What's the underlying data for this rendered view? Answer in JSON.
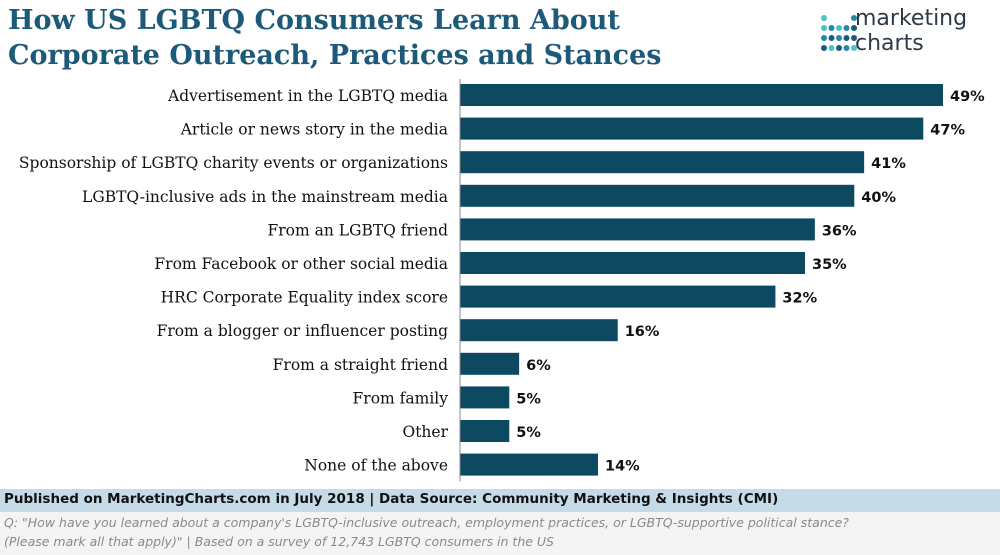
{
  "header": {
    "title_line1": "How US LGBTQ Consumers Learn About",
    "title_line2": "Corporate Outreach, Practices and Stances"
  },
  "brand": {
    "name_line1": "marketing",
    "name_line2": "charts",
    "dot_colors": [
      "#49c3c4",
      "#2a84b0",
      "#1d5a7a"
    ]
  },
  "colors": {
    "bar": "#0d4a62",
    "title": "#1d5a7a",
    "footer_band": "#c6dbe8"
  },
  "chart_data": {
    "type": "bar",
    "orientation": "horizontal",
    "categories": [
      "Advertisement in the LGBTQ media",
      "Article or news story in the media",
      "Sponsorship of LGBTQ charity events or organizations",
      "LGBTQ-inclusive ads in the mainstream media",
      "From an LGBTQ friend",
      "From Facebook or other social media",
      "HRC Corporate Equality index score",
      "From a blogger or influencer posting",
      "From a straight friend",
      "From family",
      "Other",
      "None of the above"
    ],
    "values": [
      49,
      47,
      41,
      40,
      36,
      35,
      32,
      16,
      6,
      5,
      5,
      14
    ],
    "data_labels": [
      "49%",
      "47%",
      "41%",
      "40%",
      "36%",
      "35%",
      "32%",
      "16%",
      "6%",
      "5%",
      "5%",
      "14%"
    ],
    "unit": "%",
    "xlim": [
      0,
      49
    ],
    "grid": false,
    "legend": "none"
  },
  "footer": {
    "source": "Published on MarketingCharts.com in July 2018 | Data Source: Community Marketing & Insights (CMI)",
    "note_line1": "Q: \"How have you learned about a company's LGBTQ-inclusive outreach, employment practices, or LGBTQ-supportive political stance?",
    "note_line2": "(Please mark all that apply)\" | Based on a survey of 12,743 LGBTQ consumers in the US"
  }
}
